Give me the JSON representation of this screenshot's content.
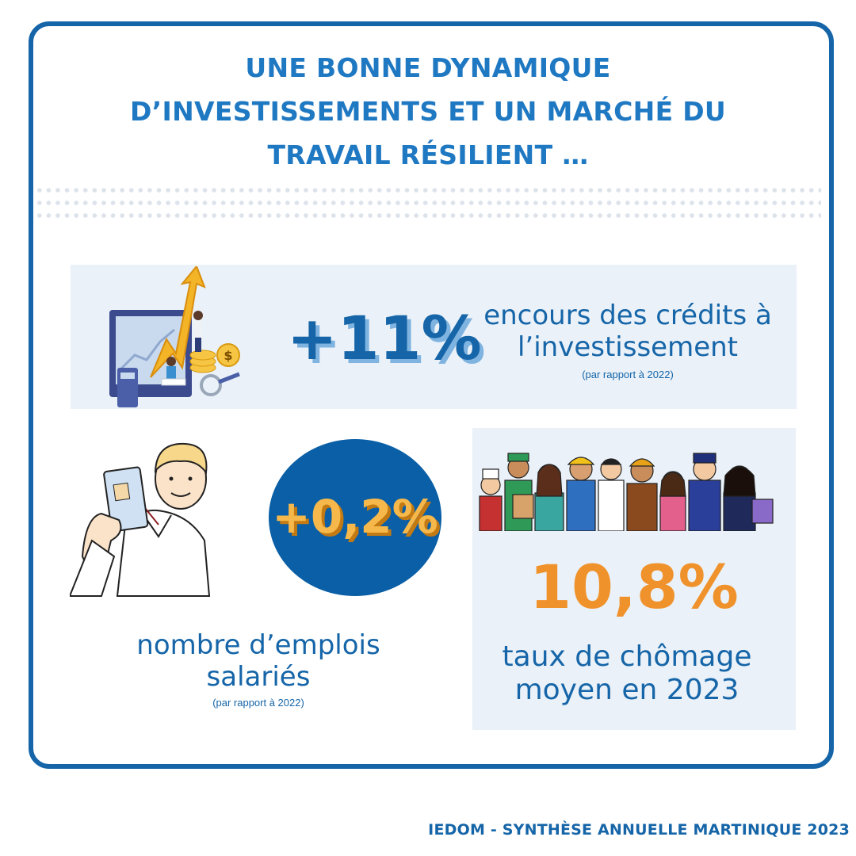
{
  "title": {
    "line1": "UNE BONNE DYNAMIQUE",
    "line2": "D’INVESTISSEMENTS ET UN MARCHÉ DU",
    "line3": "TRAVAIL RÉSILIENT …"
  },
  "credits": {
    "value": "+11%",
    "label_line1": "encours des crédits à",
    "label_line2": "l’investissement",
    "note": "(par rapport à 2022)"
  },
  "jobs": {
    "value": "+0,2%",
    "label_line1": "nombre d’emplois",
    "label_line2": "salariés",
    "note": "(par rapport à 2022)"
  },
  "unemployment": {
    "value": "10,8%",
    "label_line1": "taux de chômage",
    "label_line2": "moyen en 2023"
  },
  "footer": "IEDOM - SYNTHÈSE ANNUELLE MARTINIQUE 2023",
  "colors": {
    "primary_blue": "#1565a8",
    "title_blue": "#1f78c2",
    "accent_orange": "#f0922b",
    "panel_bg": "#eaf1f8"
  }
}
